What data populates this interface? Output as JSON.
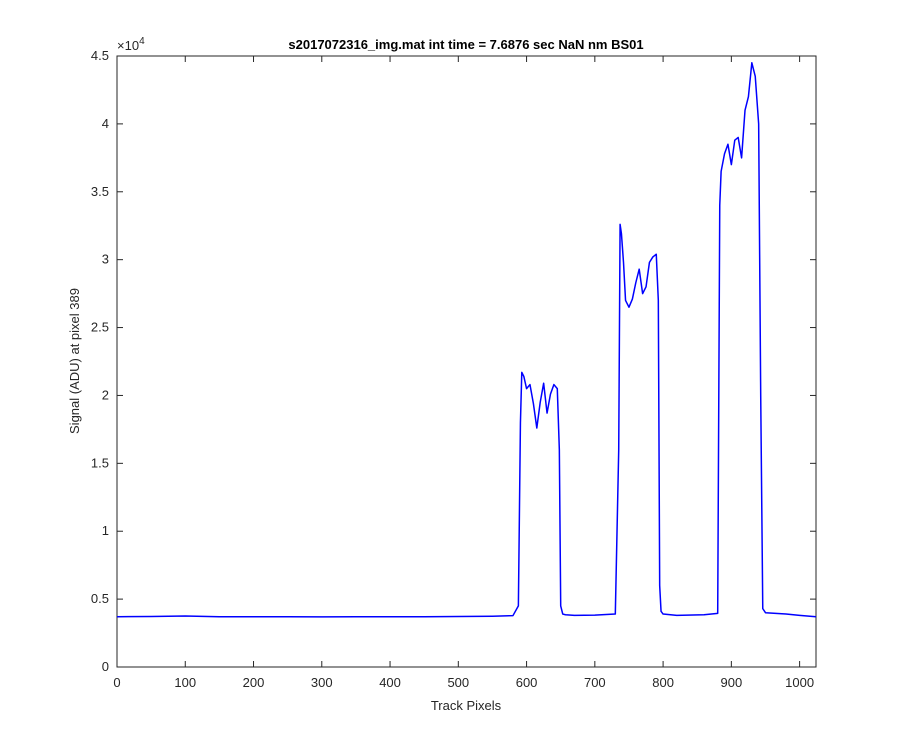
{
  "colors": {
    "line": "#0000ff",
    "axes": "#262626",
    "background": "#ffffff"
  },
  "chart_data": {
    "type": "line",
    "title": "s2017072316_img.mat int time = 7.6876 sec  NaN nm BS01",
    "xlabel": "Track Pixels",
    "ylabel": "Signal (ADU) at pixel 389",
    "y_exponent_label": "×10",
    "y_exponent_power": "4",
    "xlim": [
      0,
      1024
    ],
    "ylim": [
      0,
      45000
    ],
    "grid": false,
    "xticks": [
      0,
      100,
      200,
      300,
      400,
      500,
      600,
      700,
      800,
      900,
      1000
    ],
    "xtick_labels": [
      "0",
      "100",
      "200",
      "300",
      "400",
      "500",
      "600",
      "700",
      "800",
      "900",
      "1000"
    ],
    "yticks": [
      0,
      5000,
      10000,
      15000,
      20000,
      25000,
      30000,
      35000,
      40000,
      45000
    ],
    "ytick_labels": [
      "0",
      "0.5",
      "1",
      "1.5",
      "2",
      "2.5",
      "3",
      "3.5",
      "4",
      "4.5"
    ],
    "series": [
      {
        "color": "#0000ff",
        "x": [
          0,
          50,
          100,
          150,
          200,
          250,
          300,
          350,
          400,
          450,
          500,
          550,
          580,
          588,
          591,
          593,
          596,
          600,
          605,
          610,
          615,
          620,
          625,
          630,
          635,
          640,
          645,
          648,
          650,
          653,
          657,
          670,
          700,
          730,
          735,
          737,
          739,
          742,
          745,
          750,
          755,
          760,
          765,
          770,
          775,
          780,
          785,
          790,
          793,
          795,
          797,
          800,
          820,
          860,
          880,
          883,
          885,
          890,
          895,
          900,
          905,
          910,
          915,
          920,
          925,
          930,
          935,
          940,
          943,
          946,
          950,
          980,
          1000,
          1024
        ],
        "y": [
          3700,
          3720,
          3760,
          3700,
          3700,
          3700,
          3690,
          3700,
          3700,
          3700,
          3720,
          3740,
          3780,
          4500,
          18000,
          21700,
          21400,
          20500,
          20800,
          19400,
          17600,
          19500,
          20900,
          18700,
          20100,
          20800,
          20500,
          16000,
          4500,
          3900,
          3850,
          3800,
          3820,
          3900,
          16000,
          32600,
          31900,
          29800,
          27000,
          26500,
          27100,
          28300,
          29300,
          27500,
          28000,
          29800,
          30200,
          30400,
          27000,
          6000,
          4100,
          3900,
          3800,
          3850,
          3950,
          34000,
          36500,
          37800,
          38500,
          37000,
          38800,
          39000,
          37500,
          41000,
          42000,
          44500,
          43500,
          40000,
          20000,
          4300,
          4000,
          3900,
          3800,
          3700
        ]
      }
    ]
  }
}
